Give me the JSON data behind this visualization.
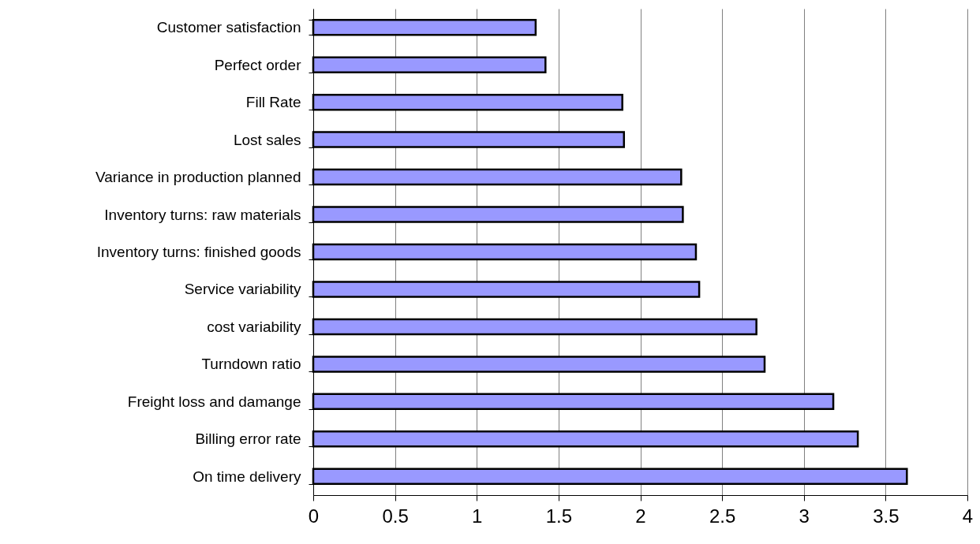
{
  "chart_data": {
    "type": "bar",
    "orientation": "horizontal",
    "categories": [
      "Customer satisfaction",
      "Perfect order",
      "Fill Rate",
      "Lost sales",
      "Variance in production planned",
      "Inventory turns: raw materials",
      "Inventory turns: finished goods",
      "Service variability",
      "cost variability",
      "Turndown ratio",
      "Freight loss and damange",
      "Billing error rate",
      "On time delivery"
    ],
    "values": [
      1.36,
      1.42,
      1.89,
      1.9,
      2.25,
      2.26,
      2.34,
      2.36,
      2.71,
      2.76,
      3.18,
      3.33,
      3.63
    ],
    "color": "#9999ff",
    "xlim": [
      0,
      4
    ],
    "xticks": [
      0,
      0.5,
      1,
      1.5,
      2,
      2.5,
      3,
      3.5,
      4
    ],
    "grid": "x"
  }
}
